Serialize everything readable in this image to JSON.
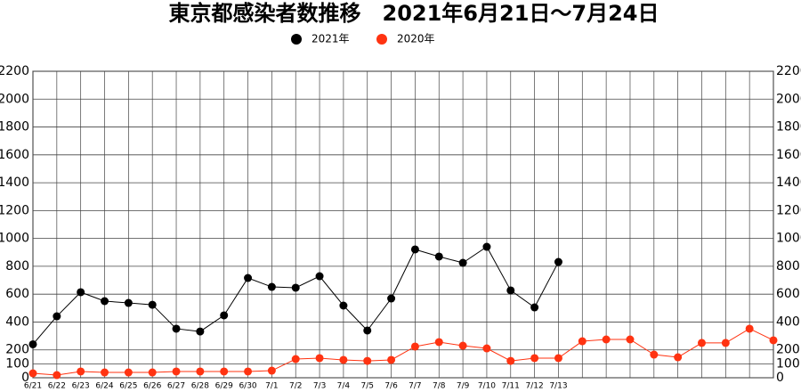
{
  "chart_data": {
    "type": "line",
    "title": "東京都感染者数推移　2021年6月21日～7月24日",
    "categories": [
      "6/21",
      "6/22",
      "6/23",
      "6/24",
      "6/25",
      "6/26",
      "6/27",
      "6/28",
      "6/29",
      "6/30",
      "7/1",
      "7/2",
      "7/3",
      "7/4",
      "7/5",
      "7/6",
      "7/7",
      "7/8",
      "7/9",
      "7/10",
      "7/11",
      "7/12",
      "7/13",
      null,
      null,
      null,
      null,
      null,
      null,
      null,
      null,
      null
    ],
    "series": [
      {
        "name": "2021年",
        "color": "#000000",
        "values": [
          240,
          441,
          614,
          550,
          537,
          524,
          352,
          332,
          448,
          716,
          652,
          646,
          729,
          518,
          339,
          569,
          921,
          870,
          825,
          940,
          627,
          505,
          831,
          null,
          null,
          null,
          null,
          null,
          null,
          null,
          null,
          null
        ]
      },
      {
        "name": "2020年",
        "color": "#ff3311",
        "values": [
          32,
          19,
          45,
          38,
          38,
          38,
          45,
          45,
          45,
          45,
          51,
          134,
          141,
          128,
          121,
          128,
          224,
          256,
          230,
          211,
          121,
          141,
          141,
          262,
          275,
          275,
          166,
          147,
          250,
          250,
          352,
          269
        ]
      }
    ],
    "ylim": [
      0,
      2200
    ],
    "yticks": [
      0,
      100,
      200,
      400,
      600,
      800,
      1000,
      1200,
      1400,
      1600,
      1800,
      2000,
      2200
    ],
    "grid": true
  }
}
